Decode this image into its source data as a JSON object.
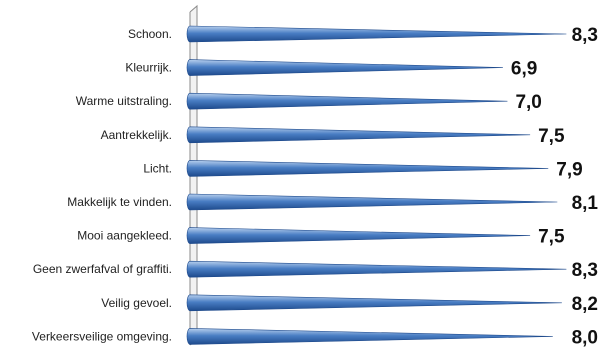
{
  "chart_data": {
    "type": "bar",
    "orientation": "horizontal",
    "categories": [
      "Schoon.",
      "Kleurrijk.",
      "Warme uitstraling.",
      "Aantrekkelijk.",
      "Licht.",
      "Makkelijk te vinden.",
      "Mooi aangekleed.",
      "Geen zwerfafval of graffiti.",
      "Veilig gevoel.",
      "Verkeersveilige omgeving."
    ],
    "values": [
      8.3,
      6.9,
      7.0,
      7.5,
      7.9,
      8.1,
      7.5,
      8.3,
      8.2,
      8.0
    ],
    "value_labels": [
      "8,3",
      "6,9",
      "7,0",
      "7,5",
      "7,9",
      "8,1",
      "7,5",
      "8,3",
      "8,2",
      "8,0"
    ],
    "xlim": [
      0,
      8.6
    ],
    "grid": false,
    "legend": "none",
    "colors": {
      "bar_dark": "#1e4a8c",
      "bar_mid": "#4a7ec4",
      "bar_light": "#b8d0ee",
      "axis": "#8a8a8a"
    }
  }
}
